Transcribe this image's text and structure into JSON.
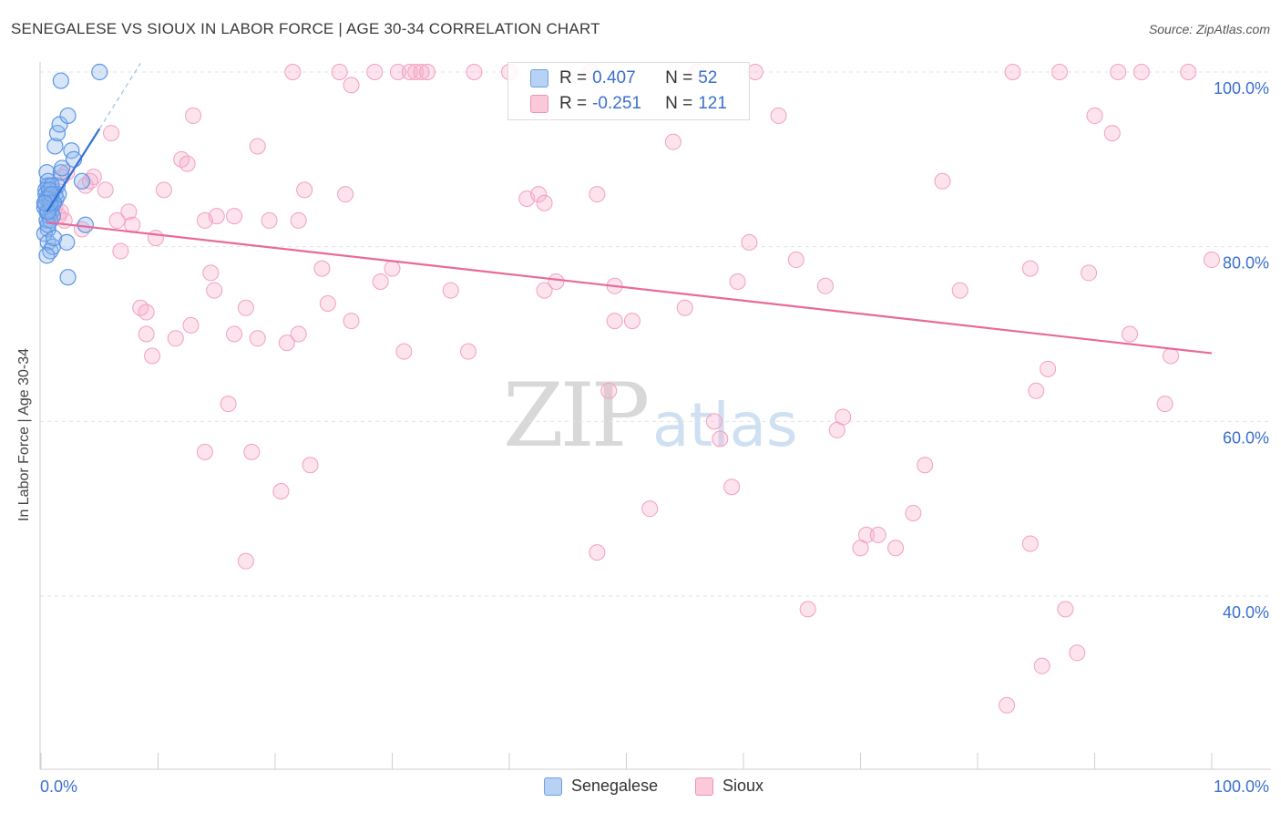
{
  "header": {
    "title": "SENEGALESE VS SIOUX IN LABOR FORCE | AGE 30-34 CORRELATION CHART",
    "source": "Source: ZipAtlas.com"
  },
  "watermark": {
    "zip": "ZIP",
    "atlas": "atlas"
  },
  "legend": {
    "rows": [
      {
        "r_label": "R =",
        "r_value": "0.407",
        "n_label": "N =",
        "n_value": "52",
        "color": "#b7d2f5",
        "border": "#6f9fe0"
      },
      {
        "r_label": "R =",
        "r_value": "-0.251",
        "n_label": "N =",
        "n_value": "121",
        "color": "#fbc9da",
        "border": "#ee93b3"
      }
    ]
  },
  "bottom_legend": {
    "series1": "Senegalese",
    "series2": "Sioux"
  },
  "colors": {
    "blue": "#5b95e6",
    "blue_line": "#2f6fd6",
    "pink": "#f08fb0",
    "pink_line": "#e8699a",
    "axis_text": "#3b6fcf"
  },
  "chart_data": {
    "type": "scatter",
    "title": "SENEGALESE VS SIOUX IN LABOR FORCE | AGE 30-34 CORRELATION CHART",
    "xlabel": "",
    "ylabel": "In Labor Force | Age 30-34",
    "xlim": [
      0,
      100
    ],
    "ylim": [
      20,
      103
    ],
    "x_tick_labels": [
      "0.0%",
      "100.0%"
    ],
    "y_ticks": [
      40,
      60,
      80,
      100
    ],
    "y_tick_labels": [
      "40.0%",
      "60.0%",
      "80.0%",
      "100.0%"
    ],
    "series": [
      {
        "name": "Senegalese",
        "R": 0.407,
        "N": 52,
        "trend": {
          "x": [
            0.5,
            5.0
          ],
          "y": [
            84.0,
            93.5
          ],
          "dashed_to": [
            8.5,
            101.0
          ]
        },
        "points": [
          [
            0.5,
            88.5
          ],
          [
            0.6,
            87.5
          ],
          [
            0.7,
            86.0
          ],
          [
            0.4,
            85.0
          ],
          [
            0.8,
            84.5
          ],
          [
            0.9,
            86.5
          ],
          [
            1.0,
            85.0
          ],
          [
            0.5,
            83.0
          ],
          [
            0.6,
            82.0
          ],
          [
            0.7,
            83.5
          ],
          [
            1.2,
            86.0
          ],
          [
            0.3,
            81.5
          ],
          [
            0.6,
            80.5
          ],
          [
            0.8,
            79.5
          ],
          [
            1.0,
            80.0
          ],
          [
            1.1,
            81.0
          ],
          [
            0.5,
            79.0
          ],
          [
            0.9,
            84.0
          ],
          [
            1.3,
            85.5
          ],
          [
            1.5,
            86.0
          ],
          [
            1.4,
            87.0
          ],
          [
            1.7,
            88.5
          ],
          [
            1.8,
            89.0
          ],
          [
            1.2,
            91.5
          ],
          [
            1.4,
            93.0
          ],
          [
            1.6,
            94.0
          ],
          [
            2.3,
            95.0
          ],
          [
            2.6,
            91.0
          ],
          [
            2.8,
            90.0
          ],
          [
            1.7,
            99.0
          ],
          [
            5.0,
            100.0
          ],
          [
            3.5,
            87.5
          ],
          [
            3.8,
            82.5
          ],
          [
            2.2,
            80.5
          ],
          [
            2.3,
            76.5
          ],
          [
            0.6,
            87.0
          ],
          [
            0.4,
            86.5
          ],
          [
            0.7,
            85.5
          ],
          [
            0.5,
            84.0
          ],
          [
            0.3,
            84.5
          ],
          [
            0.8,
            83.0
          ],
          [
            0.6,
            82.5
          ],
          [
            1.0,
            83.5
          ],
          [
            0.4,
            86.0
          ],
          [
            0.9,
            87.0
          ],
          [
            1.1,
            85.0
          ],
          [
            0.7,
            86.5
          ],
          [
            0.5,
            85.5
          ],
          [
            0.6,
            84.0
          ],
          [
            0.8,
            85.0
          ],
          [
            0.9,
            86.0
          ],
          [
            0.3,
            85.0
          ]
        ]
      },
      {
        "name": "Sioux",
        "R": -0.251,
        "N": 121,
        "trend": {
          "x": [
            0.5,
            100.0
          ],
          "y": [
            82.8,
            67.8
          ]
        },
        "points": [
          [
            21.5,
            100.0
          ],
          [
            25.5,
            100.0
          ],
          [
            28.5,
            100.0
          ],
          [
            30.5,
            100.0
          ],
          [
            31.5,
            100.0
          ],
          [
            32.0,
            100.0
          ],
          [
            32.5,
            100.0
          ],
          [
            33.0,
            100.0
          ],
          [
            37.0,
            100.0
          ],
          [
            40.0,
            100.0
          ],
          [
            47.0,
            100.0
          ],
          [
            56.0,
            100.0
          ],
          [
            61.0,
            100.0
          ],
          [
            83.0,
            100.0
          ],
          [
            87.0,
            100.0
          ],
          [
            92.0,
            100.0
          ],
          [
            94.0,
            100.0
          ],
          [
            98.0,
            100.0
          ],
          [
            26.5,
            98.5
          ],
          [
            13.0,
            95.0
          ],
          [
            63.0,
            95.0
          ],
          [
            90.0,
            95.0
          ],
          [
            6.0,
            93.0
          ],
          [
            54.0,
            92.0
          ],
          [
            91.5,
            93.0
          ],
          [
            18.5,
            91.5
          ],
          [
            12.0,
            90.0
          ],
          [
            12.5,
            89.5
          ],
          [
            4.5,
            88.0
          ],
          [
            3.8,
            87.0
          ],
          [
            4.2,
            87.5
          ],
          [
            1.8,
            88.0
          ],
          [
            2.2,
            88.5
          ],
          [
            5.5,
            86.5
          ],
          [
            10.5,
            86.5
          ],
          [
            22.5,
            86.5
          ],
          [
            26.0,
            86.0
          ],
          [
            41.5,
            85.5
          ],
          [
            42.5,
            86.0
          ],
          [
            43.0,
            85.0
          ],
          [
            47.5,
            86.0
          ],
          [
            77.0,
            87.5
          ],
          [
            0.6,
            85.0
          ],
          [
            0.8,
            84.0
          ],
          [
            1.2,
            84.5
          ],
          [
            1.5,
            83.5
          ],
          [
            1.7,
            84.0
          ],
          [
            2.0,
            83.0
          ],
          [
            3.5,
            82.0
          ],
          [
            6.5,
            83.0
          ],
          [
            7.5,
            84.0
          ],
          [
            7.8,
            82.5
          ],
          [
            9.8,
            81.0
          ],
          [
            14.0,
            83.0
          ],
          [
            15.0,
            83.5
          ],
          [
            16.5,
            83.5
          ],
          [
            19.5,
            83.0
          ],
          [
            22.0,
            83.0
          ],
          [
            6.8,
            79.5
          ],
          [
            60.5,
            80.5
          ],
          [
            64.5,
            78.5
          ],
          [
            84.5,
            77.5
          ],
          [
            89.5,
            77.0
          ],
          [
            14.5,
            77.0
          ],
          [
            24.0,
            77.5
          ],
          [
            30.0,
            77.5
          ],
          [
            29.0,
            76.0
          ],
          [
            14.8,
            75.0
          ],
          [
            35.0,
            75.0
          ],
          [
            43.0,
            75.0
          ],
          [
            44.0,
            76.0
          ],
          [
            49.0,
            75.5
          ],
          [
            59.5,
            76.0
          ],
          [
            67.0,
            75.5
          ],
          [
            78.5,
            75.0
          ],
          [
            100.0,
            78.5
          ],
          [
            8.5,
            73.0
          ],
          [
            9.0,
            72.5
          ],
          [
            17.5,
            73.0
          ],
          [
            22.0,
            70.0
          ],
          [
            24.5,
            73.5
          ],
          [
            26.5,
            71.5
          ],
          [
            12.8,
            71.0
          ],
          [
            9.0,
            70.0
          ],
          [
            11.5,
            69.5
          ],
          [
            16.5,
            70.0
          ],
          [
            18.5,
            69.5
          ],
          [
            21.0,
            69.0
          ],
          [
            31.0,
            68.0
          ],
          [
            49.0,
            71.5
          ],
          [
            50.5,
            71.5
          ],
          [
            55.0,
            73.0
          ],
          [
            9.5,
            67.5
          ],
          [
            36.5,
            68.0
          ],
          [
            93.0,
            70.0
          ],
          [
            96.5,
            67.5
          ],
          [
            86.0,
            66.0
          ],
          [
            85.0,
            63.5
          ],
          [
            48.5,
            63.5
          ],
          [
            16.0,
            62.0
          ],
          [
            57.5,
            60.0
          ],
          [
            68.5,
            60.5
          ],
          [
            68.0,
            59.0
          ],
          [
            96.0,
            62.0
          ],
          [
            58.0,
            58.0
          ],
          [
            14.0,
            56.5
          ],
          [
            18.0,
            56.5
          ],
          [
            23.0,
            55.0
          ],
          [
            20.5,
            52.0
          ],
          [
            59.0,
            52.5
          ],
          [
            75.5,
            55.0
          ],
          [
            52.0,
            50.0
          ],
          [
            74.5,
            49.5
          ],
          [
            70.5,
            47.0
          ],
          [
            71.5,
            47.0
          ],
          [
            70.0,
            45.5
          ],
          [
            73.0,
            45.5
          ],
          [
            84.5,
            46.0
          ],
          [
            47.5,
            45.0
          ],
          [
            17.5,
            44.0
          ],
          [
            65.5,
            38.5
          ],
          [
            87.5,
            38.5
          ],
          [
            88.5,
            33.5
          ],
          [
            85.5,
            32.0
          ],
          [
            82.5,
            27.5
          ]
        ]
      }
    ]
  }
}
